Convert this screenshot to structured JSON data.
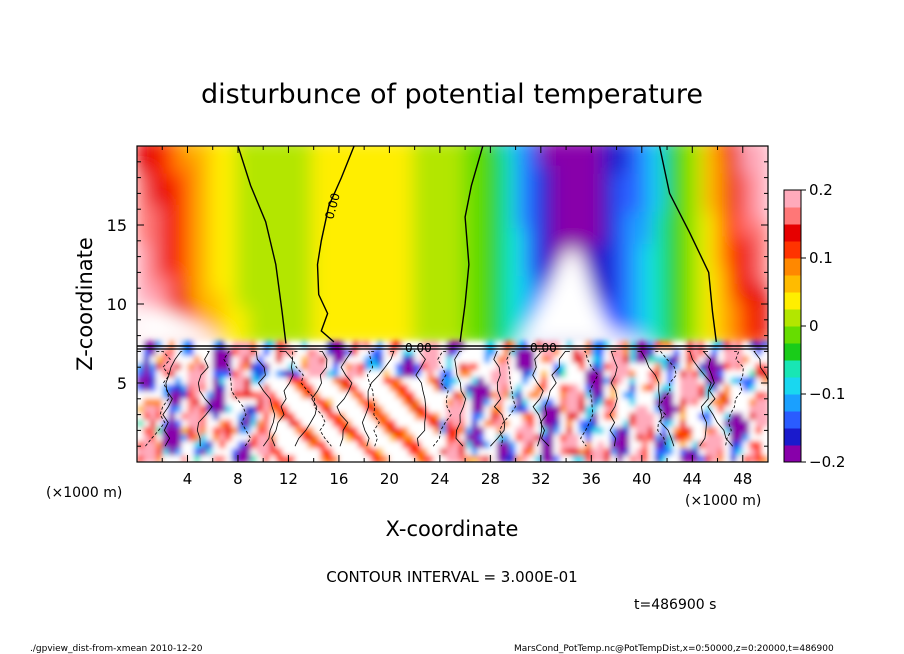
{
  "chart_data": {
    "type": "heatmap",
    "title": "disturbunce of potential temperature",
    "xlabel": "X-coordinate",
    "ylabel": "Z-coordinate",
    "x_unit_left": "(×1000 m)",
    "x_unit_right": "(×1000 m)",
    "xlim": [
      0,
      50
    ],
    "ylim": [
      0,
      20
    ],
    "xticks": [
      "4",
      "8",
      "12",
      "16",
      "20",
      "24",
      "28",
      "32",
      "36",
      "40",
      "44",
      "48"
    ],
    "yticks": [
      "5",
      "10",
      "15"
    ],
    "colorbar_ticks": [
      "0.2",
      "0.1",
      "0",
      "−0.1",
      "−0.2"
    ],
    "colorbar_range": [
      -0.2,
      0.2
    ],
    "colors": [
      "#8800aa",
      "#1a1acc",
      "#2a5cff",
      "#1aa0ff",
      "#19d7f0",
      "#18e6b4",
      "#19cc19",
      "#66dd00",
      "#b3e600",
      "#ffee00",
      "#ffbb00",
      "#ff8800",
      "#ff3300",
      "#e60000",
      "#ff7777",
      "#ffaabb"
    ],
    "contour_labels": [
      "0.00",
      "0.00",
      "0.00"
    ],
    "contour_interval": "CONTOUR INTERVAL = 3.000E-01",
    "time": "t=486900 s",
    "footer_left": "./gpview_dist-from-xmean 2010-12-20",
    "footer_right": "MarsCond_PotTemp.nc@PotTempDist,x=0:50000,z=0:20000,t=486900"
  }
}
